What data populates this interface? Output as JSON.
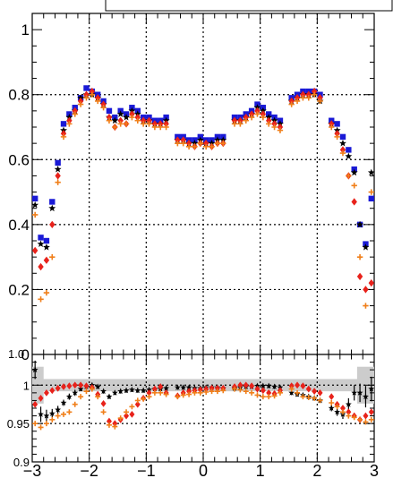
{
  "chart_data": [
    {
      "type": "scatter",
      "panel": "upper",
      "xlim": [
        -3,
        3
      ],
      "ylim": [
        0,
        1.05
      ],
      "grid": true,
      "grid_style": "dotted",
      "x_ticks": [
        "−3",
        "−2",
        "−1",
        "0",
        "1",
        "2",
        "3"
      ],
      "y_ticks": [
        "0",
        "0.2",
        "0.4",
        "0.6",
        "0.8",
        "1"
      ],
      "series": [
        {
          "marker": "square",
          "color": "#1a1ad6",
          "x": [
            -2.95,
            -2.85,
            -2.75,
            -2.65,
            -2.55,
            -2.45,
            -2.35,
            -2.25,
            -2.15,
            -2.05,
            -1.95,
            -1.85,
            -1.75,
            -1.65,
            -1.55,
            -1.45,
            -1.35,
            -1.25,
            -1.15,
            -1.05,
            -0.95,
            -0.85,
            -0.75,
            -0.65,
            -0.45,
            -0.35,
            -0.25,
            -0.15,
            -0.05,
            0.05,
            0.15,
            0.25,
            0.35,
            0.55,
            0.65,
            0.75,
            0.85,
            0.95,
            1.05,
            1.15,
            1.25,
            1.35,
            1.55,
            1.65,
            1.75,
            1.85,
            1.95,
            2.05,
            2.25,
            2.35,
            2.45,
            2.55,
            2.65,
            2.75,
            2.85,
            2.95
          ],
          "y": [
            0.48,
            0.36,
            0.35,
            0.47,
            0.59,
            0.71,
            0.74,
            0.76,
            0.79,
            0.82,
            0.81,
            0.8,
            0.78,
            0.75,
            0.73,
            0.75,
            0.74,
            0.76,
            0.75,
            0.73,
            0.73,
            0.72,
            0.72,
            0.73,
            0.67,
            0.67,
            0.66,
            0.66,
            0.67,
            0.66,
            0.66,
            0.67,
            0.67,
            0.73,
            0.73,
            0.74,
            0.75,
            0.77,
            0.76,
            0.74,
            0.73,
            0.72,
            0.79,
            0.8,
            0.81,
            0.81,
            0.81,
            0.8,
            0.72,
            0.71,
            0.67,
            0.63,
            0.57,
            0.4,
            0.34,
            0.48
          ]
        },
        {
          "marker": "star",
          "color": "#000000",
          "x": [
            -2.95,
            -2.85,
            -2.75,
            -2.65,
            -2.55,
            -2.45,
            -2.35,
            -2.25,
            -2.15,
            -2.05,
            -1.95,
            -1.85,
            -1.75,
            -1.65,
            -1.55,
            -1.45,
            -1.35,
            -1.25,
            -1.15,
            -1.05,
            -0.95,
            -0.85,
            -0.75,
            -0.65,
            -0.45,
            -0.35,
            -0.25,
            -0.15,
            -0.05,
            0.05,
            0.15,
            0.25,
            0.35,
            0.55,
            0.65,
            0.75,
            0.85,
            0.95,
            1.05,
            1.15,
            1.25,
            1.35,
            1.55,
            1.65,
            1.75,
            1.85,
            1.95,
            2.05,
            2.25,
            2.35,
            2.45,
            2.55,
            2.65,
            2.75,
            2.85,
            2.95
          ],
          "y": [
            0.46,
            0.34,
            0.33,
            0.45,
            0.57,
            0.69,
            0.73,
            0.75,
            0.79,
            0.8,
            0.8,
            0.79,
            0.77,
            0.73,
            0.72,
            0.74,
            0.73,
            0.75,
            0.74,
            0.72,
            0.72,
            0.71,
            0.71,
            0.72,
            0.66,
            0.66,
            0.65,
            0.65,
            0.66,
            0.65,
            0.65,
            0.66,
            0.66,
            0.72,
            0.72,
            0.73,
            0.74,
            0.76,
            0.75,
            0.73,
            0.72,
            0.71,
            0.78,
            0.79,
            0.8,
            0.8,
            0.8,
            0.78,
            0.71,
            0.69,
            0.65,
            0.61,
            0.56,
            0.4,
            0.33,
            0.56
          ]
        },
        {
          "marker": "diamond",
          "color": "#e8221b",
          "x": [
            -2.95,
            -2.85,
            -2.75,
            -2.65,
            -2.55,
            -2.45,
            -2.35,
            -2.25,
            -2.15,
            -2.05,
            -1.95,
            -1.85,
            -1.75,
            -1.65,
            -1.55,
            -1.45,
            -1.35,
            -1.25,
            -1.15,
            -1.05,
            -0.95,
            -0.85,
            -0.75,
            -0.65,
            -0.45,
            -0.35,
            -0.25,
            -0.15,
            -0.05,
            0.05,
            0.15,
            0.25,
            0.35,
            0.55,
            0.65,
            0.75,
            0.85,
            0.95,
            1.05,
            1.15,
            1.25,
            1.35,
            1.55,
            1.65,
            1.75,
            1.85,
            1.95,
            2.05,
            2.25,
            2.35,
            2.45,
            2.55,
            2.65,
            2.75,
            2.85,
            2.95
          ],
          "y": [
            0.32,
            0.27,
            0.29,
            0.4,
            0.55,
            0.68,
            0.72,
            0.75,
            0.78,
            0.8,
            0.81,
            0.79,
            0.77,
            0.73,
            0.7,
            0.72,
            0.71,
            0.74,
            0.73,
            0.72,
            0.72,
            0.71,
            0.71,
            0.71,
            0.66,
            0.66,
            0.65,
            0.64,
            0.65,
            0.65,
            0.64,
            0.65,
            0.65,
            0.72,
            0.72,
            0.73,
            0.74,
            0.75,
            0.74,
            0.72,
            0.71,
            0.7,
            0.78,
            0.79,
            0.8,
            0.8,
            0.81,
            0.79,
            0.71,
            0.68,
            0.63,
            0.55,
            0.47,
            0.24,
            0.2,
            0.22
          ]
        },
        {
          "marker": "cross",
          "color": "#f07f1a",
          "x": [
            -2.95,
            -2.85,
            -2.75,
            -2.65,
            -2.55,
            -2.45,
            -2.35,
            -2.25,
            -2.15,
            -2.05,
            -1.95,
            -1.85,
            -1.75,
            -1.65,
            -1.55,
            -1.45,
            -1.35,
            -1.25,
            -1.15,
            -1.05,
            -0.95,
            -0.85,
            -0.75,
            -0.65,
            -0.45,
            -0.35,
            -0.25,
            -0.15,
            -0.05,
            0.05,
            0.15,
            0.25,
            0.35,
            0.55,
            0.65,
            0.75,
            0.85,
            0.95,
            1.05,
            1.15,
            1.25,
            1.35,
            1.55,
            1.65,
            1.75,
            1.85,
            1.95,
            2.05,
            2.25,
            2.35,
            2.45,
            2.55,
            2.65,
            2.75,
            2.85,
            2.95
          ],
          "y": [
            0.43,
            0.17,
            0.19,
            0.3,
            0.53,
            0.67,
            0.71,
            0.74,
            0.77,
            0.79,
            0.8,
            0.78,
            0.76,
            0.72,
            0.7,
            0.71,
            0.71,
            0.73,
            0.72,
            0.71,
            0.71,
            0.7,
            0.7,
            0.7,
            0.65,
            0.65,
            0.64,
            0.64,
            0.65,
            0.64,
            0.64,
            0.65,
            0.65,
            0.71,
            0.71,
            0.72,
            0.73,
            0.74,
            0.73,
            0.71,
            0.7,
            0.69,
            0.77,
            0.78,
            0.79,
            0.79,
            0.8,
            0.78,
            0.7,
            0.67,
            0.62,
            0.55,
            0.52,
            0.3,
            0.15,
            0.5
          ]
        }
      ]
    },
    {
      "type": "scatter",
      "panel": "lower-ratio",
      "xlim": [
        -3,
        3
      ],
      "ylim": [
        0.9,
        1.04
      ],
      "grid": true,
      "grid_style": "dotted",
      "band": {
        "color": "#cccccc",
        "center": 1.0,
        "halfwidth": 0.008
      },
      "x_ticks": [
        "−3",
        "−2",
        "−1",
        "0",
        "1",
        "2",
        "3"
      ],
      "y_ticks": [
        "0.9",
        "0.95",
        "1"
      ],
      "series": [
        {
          "marker": "star-errorbar",
          "color": "#000000",
          "x": [
            -2.95,
            -2.85,
            -2.75,
            -2.65,
            -2.55,
            -2.45,
            -2.35,
            -2.25,
            -2.15,
            -2.05,
            -1.95,
            -1.85,
            -1.75,
            -1.65,
            -1.55,
            -1.45,
            -1.35,
            -1.25,
            -1.15,
            -1.05,
            -0.95,
            -0.85,
            -0.75,
            -0.65,
            -0.45,
            -0.35,
            -0.25,
            -0.15,
            -0.05,
            0.05,
            0.15,
            0.25,
            0.35,
            0.55,
            0.65,
            0.75,
            0.85,
            0.95,
            1.05,
            1.15,
            1.25,
            1.35,
            1.55,
            1.65,
            1.75,
            1.85,
            1.95,
            2.05,
            2.25,
            2.35,
            2.45,
            2.55,
            2.65,
            2.75,
            2.85,
            2.95
          ],
          "y": [
            1.02,
            0.962,
            0.96,
            0.963,
            0.968,
            0.977,
            0.985,
            0.99,
            0.995,
            0.998,
            1.0,
            0.998,
            0.992,
            0.985,
            0.99,
            0.992,
            0.993,
            0.994,
            0.993,
            0.993,
            0.994,
            0.995,
            0.995,
            0.996,
            0.997,
            0.997,
            0.997,
            0.996,
            0.996,
            0.997,
            0.997,
            0.997,
            0.996,
            0.996,
            0.997,
            0.998,
            0.998,
            0.999,
            0.999,
            0.999,
            0.998,
            0.997,
            0.99,
            0.988,
            0.987,
            0.985,
            0.983,
            0.98,
            0.97,
            0.965,
            0.962,
            0.975,
            0.99,
            0.99,
            0.985,
            0.995
          ],
          "err": [
            0.012,
            0.01,
            0.008,
            0.006,
            0.005,
            0.004,
            0.004,
            0.004,
            0.003,
            0.003,
            0.003,
            0.003,
            0.003,
            0.003,
            0.003,
            0.003,
            0.003,
            0.003,
            0.003,
            0.003,
            0.003,
            0.003,
            0.003,
            0.003,
            0.003,
            0.003,
            0.003,
            0.003,
            0.003,
            0.003,
            0.003,
            0.003,
            0.003,
            0.003,
            0.003,
            0.003,
            0.003,
            0.003,
            0.003,
            0.003,
            0.003,
            0.003,
            0.003,
            0.003,
            0.003,
            0.003,
            0.003,
            0.003,
            0.004,
            0.005,
            0.006,
            0.008,
            0.01,
            0.012,
            0.014,
            0.016
          ]
        },
        {
          "marker": "diamond",
          "color": "#e8221b",
          "x": [
            -2.95,
            -2.85,
            -2.75,
            -2.65,
            -2.55,
            -2.45,
            -2.35,
            -2.25,
            -2.15,
            -2.05,
            -1.95,
            -1.85,
            -1.75,
            -1.65,
            -1.55,
            -1.45,
            -1.35,
            -1.25,
            -1.15,
            -1.05,
            -0.95,
            -0.85,
            -0.75,
            -0.65,
            -0.45,
            -0.35,
            -0.25,
            -0.15,
            -0.05,
            0.05,
            0.15,
            0.25,
            0.35,
            0.55,
            0.65,
            0.75,
            0.85,
            0.95,
            1.05,
            1.15,
            1.25,
            1.35,
            1.55,
            1.65,
            1.75,
            1.85,
            1.95,
            2.05,
            2.25,
            2.35,
            2.45,
            2.55,
            2.65,
            2.75,
            2.85,
            2.95
          ],
          "y": [
            0.975,
            0.983,
            0.99,
            0.993,
            0.996,
            0.998,
            0.999,
            1.0,
            1.0,
            0.999,
            0.997,
            0.988,
            0.976,
            0.953,
            0.95,
            0.955,
            0.96,
            0.962,
            0.975,
            0.983,
            0.99,
            0.995,
            0.998,
            0.99,
            0.986,
            0.99,
            0.992,
            0.993,
            0.994,
            0.995,
            0.996,
            0.996,
            0.996,
            0.998,
            1.0,
            1.0,
            0.999,
            0.995,
            0.993,
            0.99,
            0.989,
            0.993,
            0.999,
            1.0,
            0.999,
            0.995,
            0.992,
            0.99,
            0.985,
            0.975,
            0.97,
            0.965,
            0.96,
            0.955,
            0.96,
            0.965
          ]
        },
        {
          "marker": "cross",
          "color": "#f07f1a",
          "x": [
            -2.95,
            -2.85,
            -2.75,
            -2.65,
            -2.55,
            -2.45,
            -2.35,
            -2.25,
            -2.15,
            -2.05,
            -1.95,
            -1.85,
            -1.75,
            -1.65,
            -1.55,
            -1.45,
            -1.35,
            -1.25,
            -1.15,
            -1.05,
            -0.95,
            -0.85,
            -0.75,
            -0.65,
            -0.45,
            -0.35,
            -0.25,
            -0.15,
            -0.05,
            0.05,
            0.15,
            0.25,
            0.35,
            0.55,
            0.65,
            0.75,
            0.85,
            0.95,
            1.05,
            1.15,
            1.25,
            1.35,
            1.55,
            1.65,
            1.75,
            1.85,
            1.95,
            2.05,
            2.25,
            2.35,
            2.45,
            2.55,
            2.65,
            2.75,
            2.85,
            2.95
          ],
          "y": [
            0.95,
            0.945,
            0.95,
            0.955,
            0.96,
            0.962,
            0.965,
            0.975,
            0.985,
            0.992,
            0.995,
            0.985,
            0.965,
            0.948,
            0.946,
            0.957,
            0.965,
            0.972,
            0.98,
            0.982,
            0.985,
            0.99,
            0.99,
            0.988,
            0.985,
            0.987,
            0.988,
            0.99,
            0.99,
            0.991,
            0.992,
            0.992,
            0.993,
            0.995,
            0.994,
            0.992,
            0.99,
            0.987,
            0.985,
            0.985,
            0.986,
            0.99,
            0.995,
            0.99,
            0.985,
            0.984,
            0.983,
            0.98,
            0.977,
            0.972,
            0.965,
            0.96,
            0.958,
            0.955,
            0.952,
            0.955
          ]
        }
      ]
    }
  ]
}
